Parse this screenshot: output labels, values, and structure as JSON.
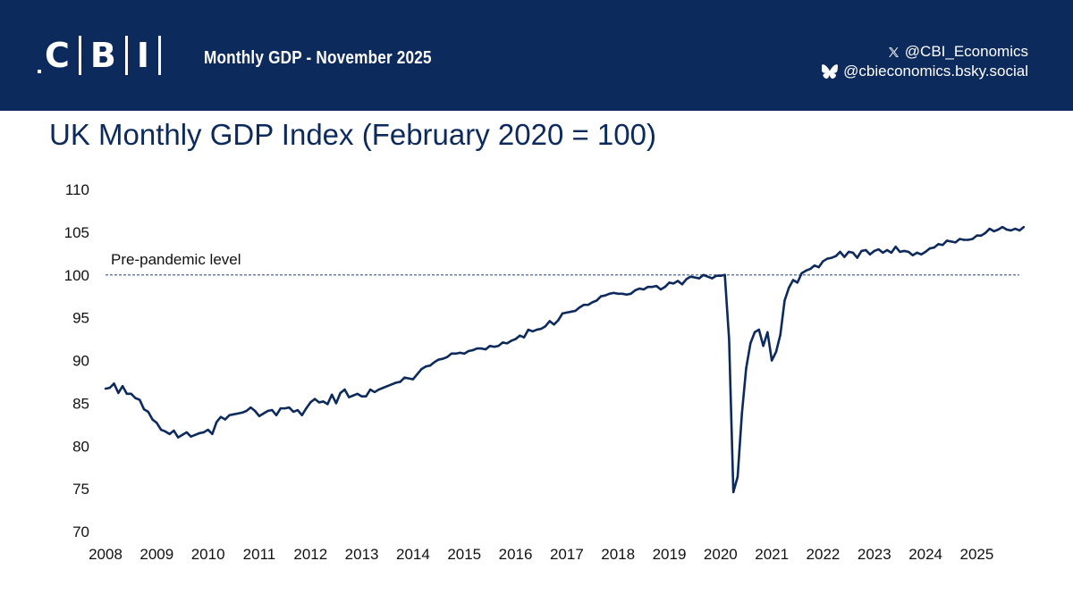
{
  "header": {
    "logo_text": [
      "C",
      "B",
      "I"
    ],
    "banner_title": "Monthly GDP - November 2025",
    "x_handle": "@CBI_Economics",
    "bluesky_handle": "@cbieconomics.bsky.social",
    "banner_color": "#0d2a5c",
    "icons": [
      "x-logo-icon",
      "bluesky-butterfly-icon"
    ]
  },
  "chart_data": {
    "type": "line",
    "title": "UK Monthly GDP Index (February 2020 = 100)",
    "xlabel": "",
    "ylabel": "",
    "ylim": [
      70,
      110
    ],
    "yticks": [
      70,
      75,
      80,
      85,
      90,
      95,
      100,
      105,
      110
    ],
    "xlim": [
      2008,
      2025.83
    ],
    "xticks": [
      2008,
      2009,
      2010,
      2011,
      2012,
      2013,
      2014,
      2015,
      2016,
      2017,
      2018,
      2019,
      2020,
      2021,
      2022,
      2023,
      2024,
      2025
    ],
    "line_color": "#0d2a5c",
    "reference_line": {
      "value": 100,
      "label": "Pre-pandemic level",
      "style": "dashed",
      "color": "#4a6a9a"
    },
    "series": [
      {
        "name": "UK Monthly GDP Index",
        "start": "2008-01",
        "values": [
          86.7,
          86.8,
          87.3,
          86.2,
          87.0,
          86.1,
          86.1,
          85.6,
          85.4,
          84.3,
          84.0,
          83.1,
          82.7,
          81.9,
          81.7,
          81.4,
          81.8,
          81.0,
          81.3,
          81.6,
          81.1,
          81.3,
          81.5,
          81.6,
          81.9,
          81.4,
          82.8,
          83.4,
          83.1,
          83.6,
          83.7,
          83.8,
          83.9,
          84.1,
          84.5,
          84.1,
          83.5,
          83.8,
          84.1,
          84.2,
          83.6,
          84.4,
          84.4,
          84.5,
          84.0,
          84.2,
          83.6,
          84.4,
          85.1,
          85.5,
          85.1,
          85.2,
          84.9,
          86.0,
          85.0,
          86.2,
          86.6,
          85.7,
          85.9,
          86.1,
          85.8,
          85.8,
          86.6,
          86.3,
          86.6,
          86.8,
          87.0,
          87.2,
          87.4,
          87.5,
          88.0,
          87.9,
          87.8,
          88.4,
          89.0,
          89.3,
          89.4,
          89.8,
          90.1,
          90.2,
          90.4,
          90.8,
          90.8,
          90.9,
          90.8,
          91.1,
          91.2,
          91.4,
          91.4,
          91.3,
          91.7,
          91.6,
          91.7,
          92.1,
          92.0,
          92.3,
          92.5,
          92.9,
          92.7,
          93.6,
          93.4,
          93.6,
          93.7,
          94.0,
          94.6,
          94.2,
          94.7,
          95.5,
          95.6,
          95.7,
          95.8,
          96.2,
          96.5,
          96.5,
          96.8,
          97.0,
          97.5,
          97.6,
          97.8,
          97.9,
          97.8,
          97.8,
          97.7,
          97.8,
          98.2,
          98.4,
          98.3,
          98.6,
          98.6,
          98.7,
          98.3,
          98.6,
          99.1,
          99.0,
          99.3,
          98.9,
          99.5,
          99.8,
          99.7,
          99.6,
          100.0,
          99.8,
          99.6,
          99.9,
          99.9,
          100.0,
          92.5,
          74.6,
          76.4,
          83.8,
          89.1,
          92.0,
          93.3,
          93.6,
          91.7,
          93.3,
          90.0,
          91.0,
          93.0,
          97.0,
          98.5,
          99.4,
          99.1,
          100.2,
          100.5,
          100.7,
          101.1,
          100.9,
          101.6,
          101.9,
          102.0,
          102.2,
          102.7,
          102.1,
          102.7,
          102.6,
          102.0,
          102.8,
          102.9,
          102.4,
          102.8,
          103.0,
          102.6,
          102.9,
          102.6,
          103.3,
          102.7,
          102.8,
          102.7,
          102.3,
          102.6,
          102.4,
          102.7,
          103.1,
          103.2,
          103.6,
          103.5,
          104.0,
          103.9,
          103.8,
          104.2,
          104.1,
          104.1,
          104.2,
          104.6,
          104.6,
          104.9,
          105.4,
          105.1,
          105.3,
          105.6,
          105.3,
          105.2,
          105.4,
          105.2,
          105.6
        ]
      }
    ]
  }
}
